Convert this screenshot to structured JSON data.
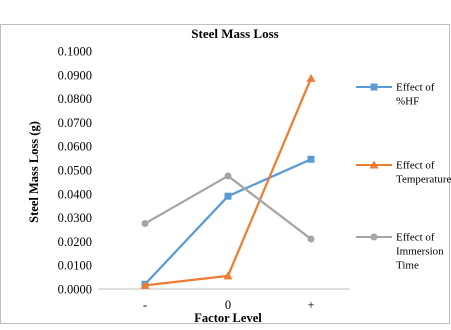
{
  "chart_data": {
    "type": "line",
    "title": "Steel Mass Loss",
    "xlabel": "Factor Level",
    "ylabel": "Steel Mass Loss (g)",
    "categories": [
      "-",
      "0",
      "+"
    ],
    "ylim": [
      0,
      0.1
    ],
    "y_ticks": [
      "0.0000",
      "0.0100",
      "0.0200",
      "0.0300",
      "0.0400",
      "0.0500",
      "0.0600",
      "0.0700",
      "0.0800",
      "0.0900",
      "0.1000"
    ],
    "grid": false,
    "legend_position": "right",
    "series": [
      {
        "name": "Effect of %HF",
        "legend_lines": [
          "Effect of",
          "%HF"
        ],
        "values": [
          0.002,
          0.039,
          0.0545
        ],
        "color": "#5b9bd5",
        "marker": "square"
      },
      {
        "name": "Effect of Temperature",
        "legend_lines": [
          "Effect of",
          "Temperature"
        ],
        "values": [
          0.0015,
          0.0055,
          0.0885
        ],
        "color": "#ed7d31",
        "marker": "triangle"
      },
      {
        "name": "Effect of Immersion Time",
        "legend_lines": [
          "Effect of",
          "Immersion",
          "Time"
        ],
        "values": [
          0.0275,
          0.0475,
          0.021
        ],
        "color": "#a5a5a5",
        "marker": "circle"
      }
    ]
  }
}
